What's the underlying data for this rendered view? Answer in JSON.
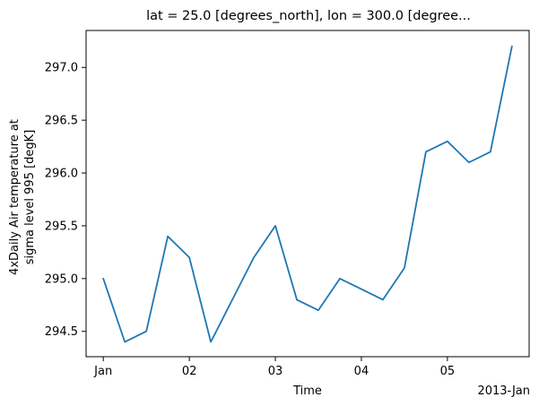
{
  "chart_data": {
    "type": "line",
    "title": "lat = 25.0 [degrees_north], lon = 300.0 [degree...",
    "xlabel": "Time",
    "ylabel_lines": [
      "4xDaily Air temperature at",
      "sigma level 995 [degK]"
    ],
    "x_offset_label": "2013-Jan",
    "x_unit": "days since 2013-01-01",
    "xlim": [
      -0.2,
      4.95
    ],
    "ylim": [
      294.26,
      297.35
    ],
    "x_ticks": [
      {
        "value": 0,
        "label": "Jan"
      },
      {
        "value": 1,
        "label": "02"
      },
      {
        "value": 2,
        "label": "03"
      },
      {
        "value": 3,
        "label": "04"
      },
      {
        "value": 4,
        "label": "05"
      }
    ],
    "y_ticks": [
      {
        "value": 294.5,
        "label": "294.5"
      },
      {
        "value": 295.0,
        "label": "295.0"
      },
      {
        "value": 295.5,
        "label": "295.5"
      },
      {
        "value": 296.0,
        "label": "296.0"
      },
      {
        "value": 296.5,
        "label": "296.5"
      },
      {
        "value": 297.0,
        "label": "297.0"
      }
    ],
    "grid": false,
    "series": [
      {
        "color": "#1f77b4",
        "x": [
          0,
          0.25,
          0.5,
          0.75,
          1.0,
          1.25,
          1.5,
          1.75,
          2.0,
          2.25,
          2.5,
          2.75,
          3.0,
          3.25,
          3.5,
          3.75,
          4.0,
          4.25,
          4.5,
          4.75
        ],
        "y": [
          295.0,
          294.4,
          294.5,
          295.4,
          295.2,
          294.4,
          294.8,
          295.2,
          295.5,
          294.8,
          294.7,
          295.0,
          294.9,
          294.8,
          295.1,
          296.2,
          296.3,
          296.1,
          296.2,
          297.2
        ]
      }
    ]
  }
}
